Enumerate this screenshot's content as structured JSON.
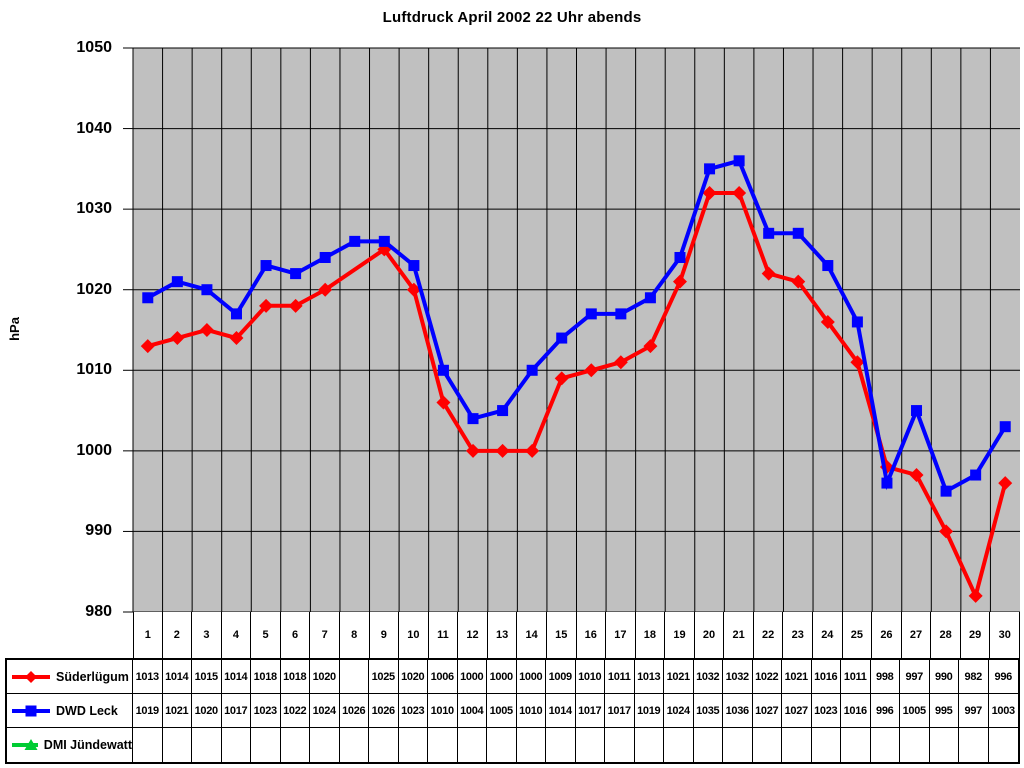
{
  "chart_data": {
    "type": "line",
    "title": "Luftdruck April 2002 22 Uhr abends",
    "ylabel": "hPa",
    "xlabel": "",
    "ylim": [
      980,
      1050
    ],
    "yticks": [
      1050,
      1040,
      1030,
      1020,
      1010,
      1000,
      990,
      980
    ],
    "grid": true,
    "plot_bg": "#c0c0c0",
    "grid_color": "#000000",
    "legend_position": "table-bottom-left",
    "categories": [
      "1",
      "2",
      "3",
      "4",
      "5",
      "6",
      "7",
      "8",
      "9",
      "10",
      "11",
      "12",
      "13",
      "14",
      "15",
      "16",
      "17",
      "18",
      "19",
      "20",
      "21",
      "22",
      "23",
      "24",
      "25",
      "26",
      "27",
      "28",
      "29",
      "30"
    ],
    "series": [
      {
        "name": "Süderlügum",
        "color": "#ff0000",
        "marker": "diamond",
        "values": [
          1013,
          1014,
          1015,
          1014,
          1018,
          1018,
          1020,
          null,
          1025,
          1020,
          1006,
          1000,
          1000,
          1000,
          1009,
          1010,
          1011,
          1013,
          1021,
          1032,
          1032,
          1022,
          1021,
          1016,
          1011,
          998,
          997,
          990,
          982,
          996
        ]
      },
      {
        "name": "DWD Leck",
        "color": "#0000ff",
        "marker": "square",
        "values": [
          1019,
          1021,
          1020,
          1017,
          1023,
          1022,
          1024,
          1026,
          1026,
          1023,
          1010,
          1004,
          1005,
          1010,
          1014,
          1017,
          1017,
          1019,
          1024,
          1035,
          1036,
          1027,
          1027,
          1023,
          1016,
          996,
          1005,
          995,
          997,
          1003
        ]
      },
      {
        "name": "DMI Jündewatt",
        "color": "#00cc33",
        "marker": "triangle",
        "values": [
          null,
          null,
          null,
          null,
          null,
          null,
          null,
          null,
          null,
          null,
          null,
          null,
          null,
          null,
          null,
          null,
          null,
          null,
          null,
          null,
          null,
          null,
          null,
          null,
          null,
          null,
          null,
          null,
          null,
          null
        ]
      }
    ]
  }
}
